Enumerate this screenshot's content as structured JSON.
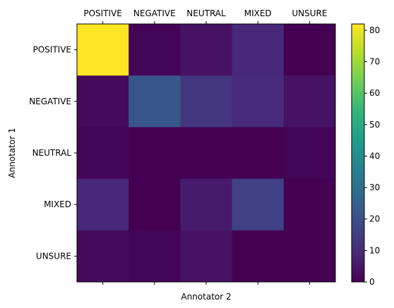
{
  "chart_data": {
    "type": "heatmap",
    "x_categories": [
      "POSITIVE",
      "NEGATIVE",
      "NEUTRAL",
      "MIXED",
      "UNSURE"
    ],
    "y_categories": [
      "POSITIVE",
      "NEGATIVE",
      "NEUTRAL",
      "MIXED",
      "UNSURE"
    ],
    "xlabel": "Annotator 2",
    "ylabel": "Annotator 1",
    "values": [
      [
        82,
        1,
        4,
        9,
        0
      ],
      [
        2,
        22,
        13,
        10,
        4
      ],
      [
        1,
        0,
        0,
        0,
        1
      ],
      [
        9,
        0,
        6,
        16,
        0
      ],
      [
        2,
        1,
        4,
        0,
        0
      ]
    ],
    "colorbar": {
      "range": [
        0,
        82
      ],
      "ticks": [
        0,
        10,
        20,
        30,
        40,
        50,
        60,
        70,
        80
      ],
      "colormap": "viridis"
    },
    "x_tick_position": "top"
  }
}
